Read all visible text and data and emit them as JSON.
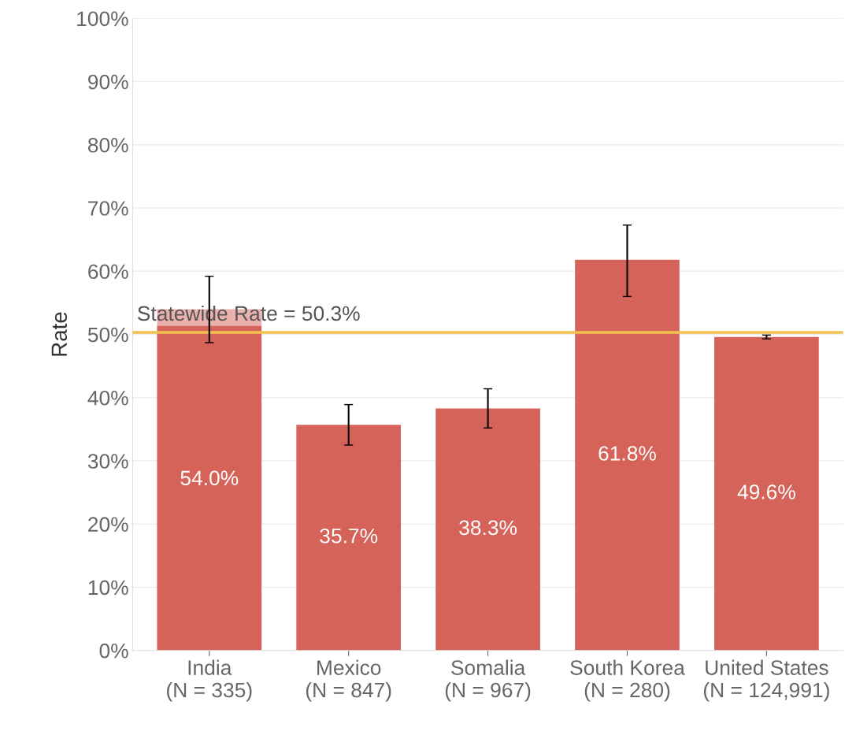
{
  "chart_data": {
    "type": "bar",
    "ylabel": "Rate",
    "categories": [
      "India\n(N = 335)",
      "Mexico\n(N = 847)",
      "Somalia\n(N = 967)",
      "South Korea\n(N = 280)",
      "United States\n(N = 124,991)"
    ],
    "values": [
      54.0,
      35.7,
      38.3,
      61.8,
      49.6
    ],
    "value_labels": [
      "54.0%",
      "35.7%",
      "38.3%",
      "61.8%",
      "49.6%"
    ],
    "errors": [
      [
        48.7,
        59.2
      ],
      [
        32.5,
        38.9
      ],
      [
        35.2,
        41.4
      ],
      [
        56.0,
        67.3
      ],
      [
        49.3,
        49.9
      ]
    ],
    "color": "#d6635a",
    "ylim": [
      0,
      100
    ],
    "yticks": [
      {
        "value": 0,
        "label": "0%"
      },
      {
        "value": 10,
        "label": "10%"
      },
      {
        "value": 20,
        "label": "20%"
      },
      {
        "value": 30,
        "label": "30%"
      },
      {
        "value": 40,
        "label": "40%"
      },
      {
        "value": 50,
        "label": "50%"
      },
      {
        "value": 60,
        "label": "60%"
      },
      {
        "value": 70,
        "label": "70%"
      },
      {
        "value": 80,
        "label": "80%"
      },
      {
        "value": 90,
        "label": "90%"
      },
      {
        "value": 100,
        "label": "100%"
      }
    ],
    "ref_lines": [
      {
        "axis": "y",
        "value": 50.3,
        "label": "Statewide Rate = 50.3%",
        "color": "#f2c14e"
      }
    ],
    "grid": "y"
  }
}
